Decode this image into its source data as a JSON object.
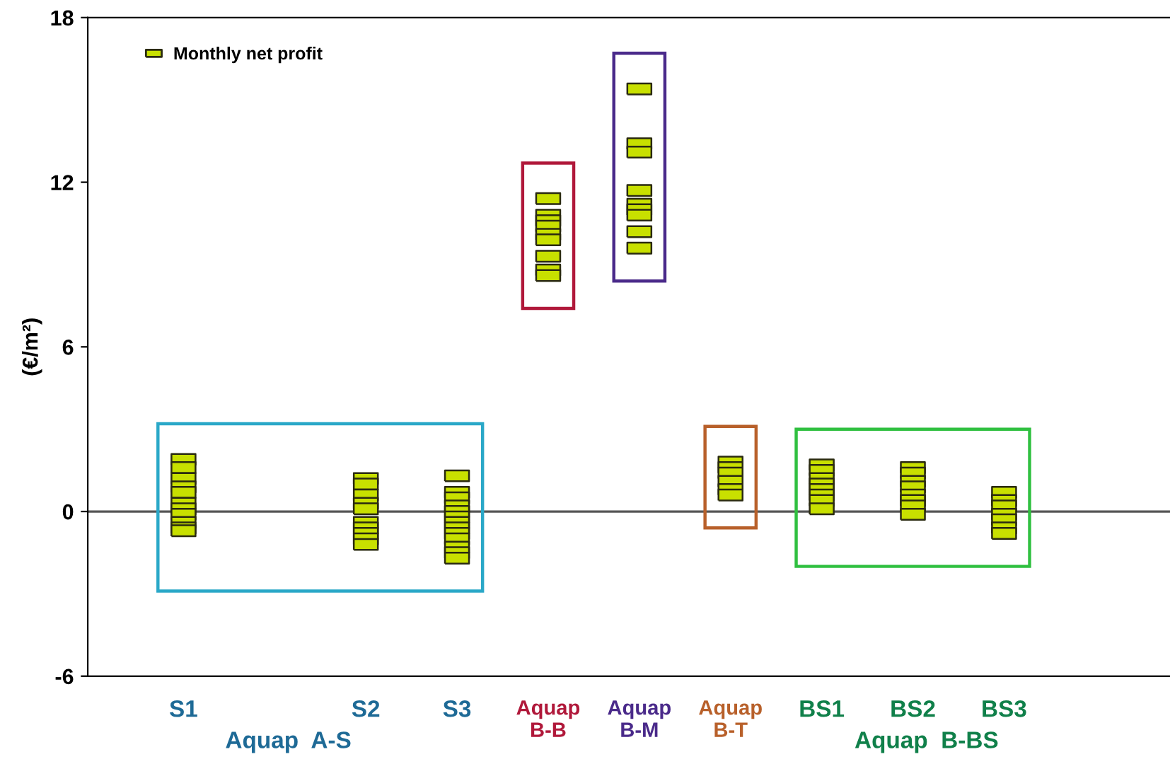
{
  "chart_data": {
    "type": "scatter",
    "categories": [
      "S1",
      null,
      "S2",
      "S3",
      "Aquap\nB-B",
      "Aquap\nB-M",
      "Aquap\nB-T",
      "BS1",
      "BS2",
      "BS3"
    ],
    "ylabel": "(€/m²)",
    "ylim": [
      -6,
      18
    ],
    "yticks": [
      -6,
      0,
      6,
      12,
      18
    ],
    "ref_lines": [
      {
        "axis": "y",
        "value": 0,
        "color": "#555555"
      }
    ],
    "legend": "top left",
    "marker": "square",
    "grid": false,
    "annotations": [
      "Aquap  A-S",
      "Aquap  B-BS"
    ],
    "series": [
      {
        "name": "Monthly net profit",
        "color": "#c8e000",
        "x": [
          "S1",
          "S1",
          "S1",
          "S1",
          "S1",
          "S1",
          "S1",
          "S1",
          "S1",
          "S1",
          "S1",
          "S2",
          "S2",
          "S2",
          "S2",
          "S2",
          "S2",
          "S2",
          "S2",
          "S2",
          "S2",
          "S3",
          "S3",
          "S3",
          "S3",
          "S3",
          "S3",
          "S3",
          "S3",
          "S3",
          "S3",
          "S3",
          "S3",
          "S3",
          "Aquap\nB-B",
          "Aquap\nB-B",
          "Aquap\nB-B",
          "Aquap\nB-B",
          "Aquap\nB-B",
          "Aquap\nB-B",
          "Aquap\nB-B",
          "Aquap\nB-B",
          "Aquap\nB-B",
          "Aquap\nB-M",
          "Aquap\nB-M",
          "Aquap\nB-M",
          "Aquap\nB-M",
          "Aquap\nB-M",
          "Aquap\nB-M",
          "Aquap\nB-M",
          "Aquap\nB-M",
          "Aquap\nB-M",
          "Aquap\nB-T",
          "Aquap\nB-T",
          "Aquap\nB-T",
          "Aquap\nB-T",
          "Aquap\nB-T",
          "Aquap\nB-T",
          "BS1",
          "BS1",
          "BS1",
          "BS1",
          "BS1",
          "BS1",
          "BS1",
          "BS1",
          "BS2",
          "BS2",
          "BS2",
          "BS2",
          "BS2",
          "BS2",
          "BS2",
          "BS2",
          "BS3",
          "BS3",
          "BS3",
          "BS3",
          "BS3",
          "BS3",
          "BS3"
        ],
        "values": [
          1.9,
          1.6,
          1.2,
          0.9,
          0.7,
          0.3,
          0.1,
          -0.1,
          -0.4,
          -0.6,
          -0.7,
          1.2,
          1.0,
          0.6,
          0.3,
          0.1,
          -0.4,
          -0.6,
          -0.8,
          -1.0,
          -1.2,
          1.3,
          0.7,
          0.5,
          0.2,
          0.0,
          -0.2,
          -0.4,
          -0.6,
          -0.8,
          -1.0,
          -1.3,
          -1.5,
          -1.7,
          11.4,
          10.8,
          10.6,
          10.4,
          10.1,
          9.9,
          9.3,
          8.8,
          8.6,
          15.4,
          13.4,
          13.1,
          11.7,
          11.2,
          11.0,
          10.8,
          10.2,
          9.6,
          1.8,
          1.6,
          1.4,
          1.1,
          0.8,
          0.6,
          1.7,
          1.5,
          1.2,
          1.0,
          0.8,
          0.6,
          0.4,
          0.1,
          1.6,
          1.4,
          1.1,
          0.9,
          0.6,
          0.4,
          0.2,
          -0.1,
          0.7,
          0.4,
          0.2,
          -0.1,
          -0.3,
          -0.6,
          -0.8
        ]
      }
    ]
  }
}
